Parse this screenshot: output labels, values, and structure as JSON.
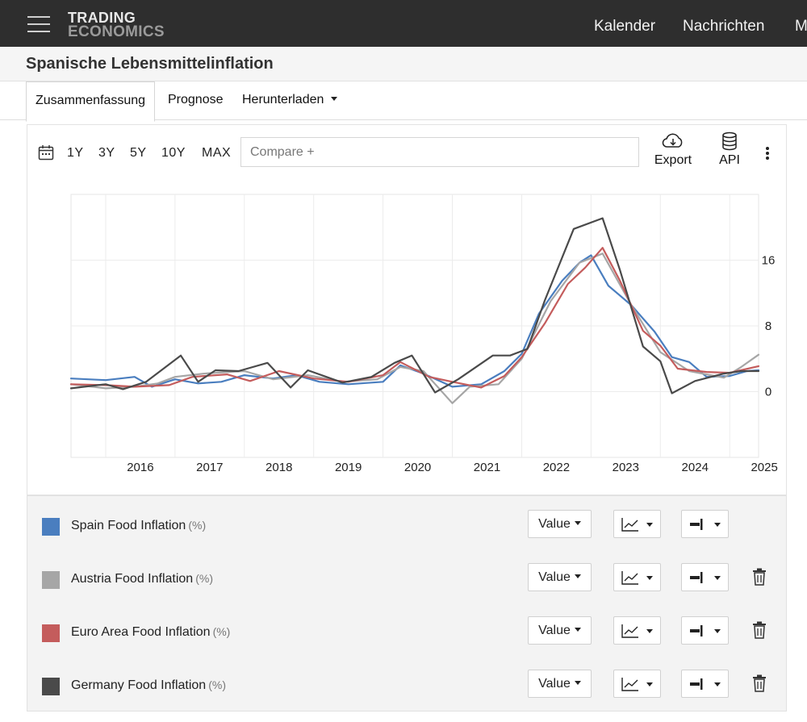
{
  "header": {
    "logo_line1": "TRADING",
    "logo_line2": "ECONOMICS",
    "nav": [
      "Kalender",
      "Nachrichten",
      "M"
    ]
  },
  "page": {
    "title": "Spanische Lebensmittelinflation"
  },
  "tabs": [
    {
      "label": "Zusammenfassung",
      "active": true
    },
    {
      "label": "Prognose"
    },
    {
      "label": "Herunterladen",
      "dropdown": true
    }
  ],
  "toolbar": {
    "ranges": [
      "1Y",
      "3Y",
      "5Y",
      "10Y",
      "MAX"
    ],
    "compare_placeholder": "Compare +",
    "export_label": "Export",
    "api_label": "API"
  },
  "chart_data": {
    "type": "line",
    "x_axis": {
      "type": "date",
      "ticks": [
        "2016",
        "2017",
        "2018",
        "2019",
        "2020",
        "2021",
        "2022",
        "2023",
        "2024",
        "2025"
      ],
      "range": [
        "2015-07",
        "2025-06"
      ]
    },
    "y_axis": {
      "position": "right",
      "ticks": [
        0,
        8,
        16
      ],
      "ylim": [
        -8,
        24
      ]
    },
    "grid": true,
    "series": [
      {
        "name": "Spain Food Inflation",
        "color": "#4a7ebf",
        "points": [
          [
            "2015-07",
            1.6
          ],
          [
            "2016-01",
            1.4
          ],
          [
            "2016-06",
            1.8
          ],
          [
            "2016-09",
            0.6
          ],
          [
            "2017-01",
            1.5
          ],
          [
            "2017-05",
            1.0
          ],
          [
            "2017-09",
            1.2
          ],
          [
            "2018-01",
            2.0
          ],
          [
            "2018-06",
            1.6
          ],
          [
            "2018-10",
            2.0
          ],
          [
            "2019-02",
            1.2
          ],
          [
            "2019-07",
            0.9
          ],
          [
            "2020-01",
            1.2
          ],
          [
            "2020-04",
            3.2
          ],
          [
            "2020-08",
            2.2
          ],
          [
            "2021-01",
            0.6
          ],
          [
            "2021-06",
            0.9
          ],
          [
            "2021-10",
            2.5
          ],
          [
            "2022-01",
            4.6
          ],
          [
            "2022-04",
            9.5
          ],
          [
            "2022-08",
            13.5
          ],
          [
            "2022-11",
            15.7
          ],
          [
            "2023-01",
            16.6
          ],
          [
            "2023-04",
            12.9
          ],
          [
            "2023-08",
            10.5
          ],
          [
            "2023-12",
            7.3
          ],
          [
            "2024-03",
            4.2
          ],
          [
            "2024-06",
            3.6
          ],
          [
            "2024-09",
            1.8
          ],
          [
            "2025-01",
            1.9
          ],
          [
            "2025-04",
            2.5
          ],
          [
            "2025-06",
            2.6
          ]
        ]
      },
      {
        "name": "Austria Food Inflation",
        "color": "#a6a6a6",
        "points": [
          [
            "2015-07",
            0.9
          ],
          [
            "2016-01",
            0.4
          ],
          [
            "2016-06",
            0.6
          ],
          [
            "2016-10",
            1.0
          ],
          [
            "2017-01",
            1.8
          ],
          [
            "2017-06",
            2.2
          ],
          [
            "2018-01",
            2.5
          ],
          [
            "2018-06",
            1.5
          ],
          [
            "2018-12",
            2.0
          ],
          [
            "2019-06",
            1.2
          ],
          [
            "2019-12",
            1.5
          ],
          [
            "2020-04",
            3.0
          ],
          [
            "2020-08",
            2.5
          ],
          [
            "2021-01",
            -1.4
          ],
          [
            "2021-04",
            0.6
          ],
          [
            "2021-09",
            0.9
          ],
          [
            "2022-01",
            4.0
          ],
          [
            "2022-06",
            11.0
          ],
          [
            "2022-11",
            15.7
          ],
          [
            "2023-03",
            16.8
          ],
          [
            "2023-08",
            10.5
          ],
          [
            "2024-01",
            4.8
          ],
          [
            "2024-06",
            2.5
          ],
          [
            "2024-12",
            1.7
          ],
          [
            "2025-03",
            3.0
          ],
          [
            "2025-06",
            4.5
          ]
        ]
      },
      {
        "name": "Euro Area Food Inflation",
        "color": "#c45c5c",
        "points": [
          [
            "2015-07",
            0.9
          ],
          [
            "2016-01",
            0.8
          ],
          [
            "2016-06",
            0.6
          ],
          [
            "2016-12",
            0.8
          ],
          [
            "2017-04",
            1.8
          ],
          [
            "2017-10",
            2.1
          ],
          [
            "2018-02",
            1.3
          ],
          [
            "2018-07",
            2.5
          ],
          [
            "2019-01",
            1.6
          ],
          [
            "2019-07",
            1.2
          ],
          [
            "2020-01",
            2.0
          ],
          [
            "2020-04",
            3.6
          ],
          [
            "2020-09",
            1.8
          ],
          [
            "2021-01",
            1.2
          ],
          [
            "2021-06",
            0.5
          ],
          [
            "2021-10",
            1.9
          ],
          [
            "2022-01",
            4.2
          ],
          [
            "2022-05",
            8.3
          ],
          [
            "2022-09",
            13.1
          ],
          [
            "2022-12",
            15.1
          ],
          [
            "2023-03",
            17.5
          ],
          [
            "2023-06",
            13.5
          ],
          [
            "2023-10",
            7.4
          ],
          [
            "2024-01",
            5.6
          ],
          [
            "2024-04",
            2.8
          ],
          [
            "2024-09",
            2.4
          ],
          [
            "2025-01",
            2.3
          ],
          [
            "2025-06",
            3.1
          ]
        ]
      },
      {
        "name": "Germany Food Inflation",
        "color": "#4a4a4a",
        "points": [
          [
            "2015-07",
            0.4
          ],
          [
            "2016-01",
            0.9
          ],
          [
            "2016-04",
            0.3
          ],
          [
            "2016-08",
            1.2
          ],
          [
            "2017-02",
            4.4
          ],
          [
            "2017-05",
            1.2
          ],
          [
            "2017-08",
            2.6
          ],
          [
            "2017-12",
            2.5
          ],
          [
            "2018-05",
            3.5
          ],
          [
            "2018-09",
            0.5
          ],
          [
            "2018-12",
            2.6
          ],
          [
            "2019-06",
            1.1
          ],
          [
            "2019-11",
            1.8
          ],
          [
            "2020-03",
            3.5
          ],
          [
            "2020-06",
            4.4
          ],
          [
            "2020-10",
            -0.1
          ],
          [
            "2021-02",
            1.5
          ],
          [
            "2021-08",
            4.4
          ],
          [
            "2021-11",
            4.4
          ],
          [
            "2022-02",
            5.2
          ],
          [
            "2022-05",
            11.1
          ],
          [
            "2022-10",
            19.8
          ],
          [
            "2023-03",
            21.1
          ],
          [
            "2023-06",
            14.8
          ],
          [
            "2023-10",
            5.5
          ],
          [
            "2024-01",
            3.7
          ],
          [
            "2024-03",
            -0.2
          ],
          [
            "2024-07",
            1.3
          ],
          [
            "2024-12",
            2.2
          ],
          [
            "2025-03",
            2.5
          ],
          [
            "2025-06",
            2.5
          ]
        ]
      }
    ]
  },
  "legend": {
    "unit": "(%)",
    "value_label": "Value",
    "items": [
      {
        "name": "Spain Food Inflation",
        "color": "#4a7ebf",
        "removable": false
      },
      {
        "name": "Austria Food Inflation",
        "color": "#a6a6a6",
        "removable": true
      },
      {
        "name": "Euro Area Food Inflation",
        "color": "#c45c5c",
        "removable": true
      },
      {
        "name": "Germany Food Inflation",
        "color": "#4a4a4a",
        "removable": true
      }
    ]
  }
}
